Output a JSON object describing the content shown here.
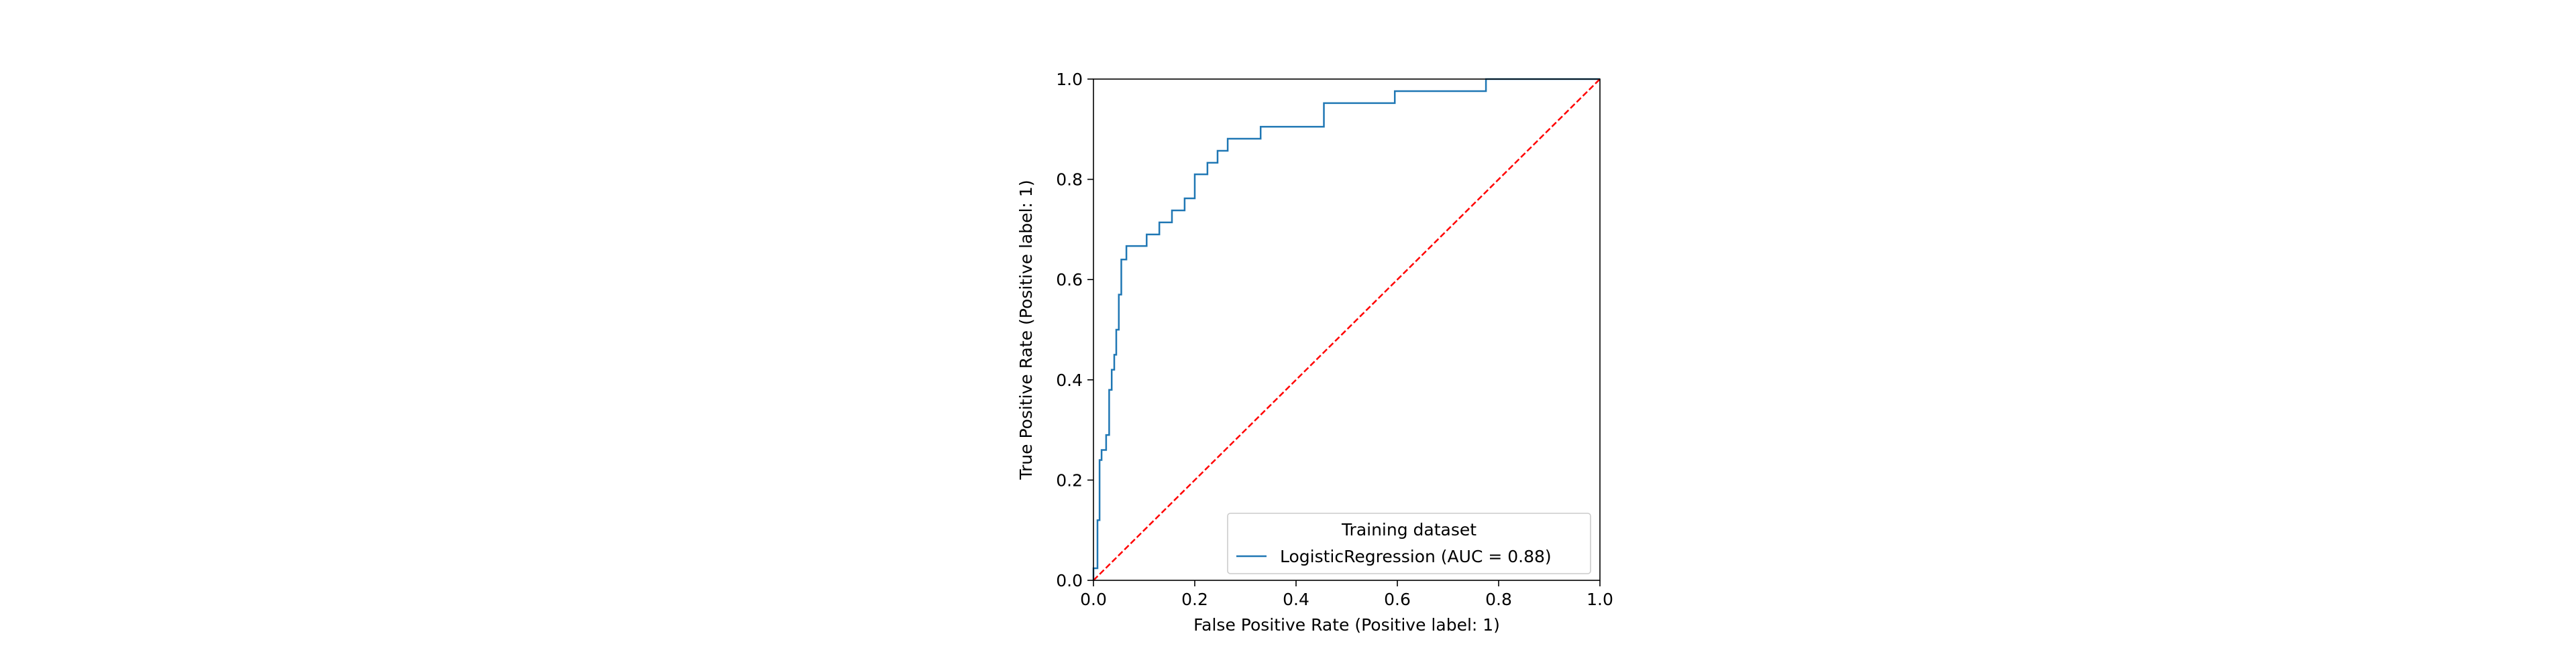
{
  "chart_data": {
    "type": "line",
    "title": "",
    "xlabel": "False Positive Rate (Positive label: 1)",
    "ylabel": "True Positive Rate (Positive label: 1)",
    "xlim": [
      0.0,
      1.0
    ],
    "ylim": [
      0.0,
      1.0
    ],
    "grid": false,
    "legend_placement": "lower right",
    "legend_title": "Training dataset",
    "x_ticks": [
      "0.0",
      "0.2",
      "0.4",
      "0.6",
      "0.8",
      "1.0"
    ],
    "y_ticks": [
      "0.0",
      "0.2",
      "0.4",
      "0.6",
      "0.8",
      "1.0"
    ],
    "series": [
      {
        "name": "LogisticRegression (AUC = 0.88)",
        "color": "#1f77b4",
        "style": "steps",
        "x": [
          0.0,
          0.0,
          0.008,
          0.008,
          0.012,
          0.012,
          0.016,
          0.016,
          0.025,
          0.025,
          0.031,
          0.031,
          0.036,
          0.036,
          0.041,
          0.041,
          0.045,
          0.045,
          0.05,
          0.05,
          0.055,
          0.055,
          0.065,
          0.065,
          0.105,
          0.105,
          0.13,
          0.13,
          0.155,
          0.155,
          0.18,
          0.18,
          0.2,
          0.2,
          0.225,
          0.225,
          0.245,
          0.245,
          0.265,
          0.265,
          0.33,
          0.33,
          0.455,
          0.455,
          0.595,
          0.595,
          0.775,
          0.775,
          1.0
        ],
        "y": [
          0.0,
          0.024,
          0.024,
          0.12,
          0.12,
          0.24,
          0.24,
          0.26,
          0.26,
          0.29,
          0.29,
          0.38,
          0.38,
          0.42,
          0.42,
          0.45,
          0.45,
          0.5,
          0.5,
          0.57,
          0.57,
          0.64,
          0.64,
          0.667,
          0.667,
          0.69,
          0.69,
          0.714,
          0.714,
          0.738,
          0.738,
          0.762,
          0.762,
          0.81,
          0.81,
          0.833,
          0.833,
          0.857,
          0.857,
          0.881,
          0.881,
          0.905,
          0.905,
          0.952,
          0.952,
          0.976,
          0.976,
          1.0,
          1.0
        ]
      },
      {
        "name": "",
        "color": "#ff0000",
        "style": "dashed",
        "x": [
          0.0,
          1.0
        ],
        "y": [
          0.0,
          1.0
        ]
      }
    ]
  }
}
